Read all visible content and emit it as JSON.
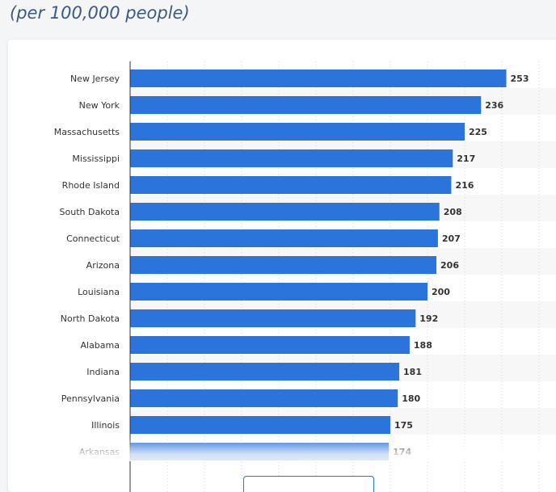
{
  "header": {
    "subtitle": "(per 100,000 people)"
  },
  "chart_data": {
    "type": "bar",
    "orientation": "horizontal",
    "title": "",
    "subtitle": "(per 100,000 people)",
    "xlabel": "",
    "ylabel": "",
    "xlim": [
      0,
      275
    ],
    "grid": true,
    "bar_color": "#2a74db",
    "categories": [
      "New Jersey",
      "New York",
      "Massachusetts",
      "Mississippi",
      "Rhode Island",
      "South Dakota",
      "Connecticut",
      "Arizona",
      "Louisiana",
      "North Dakota",
      "Alabama",
      "Indiana",
      "Pennsylvania",
      "Illinois",
      "Arkansas"
    ],
    "values": [
      253,
      236,
      225,
      217,
      216,
      208,
      207,
      206,
      200,
      192,
      188,
      181,
      180,
      175,
      174
    ]
  },
  "actions": {
    "show_more": ""
  }
}
